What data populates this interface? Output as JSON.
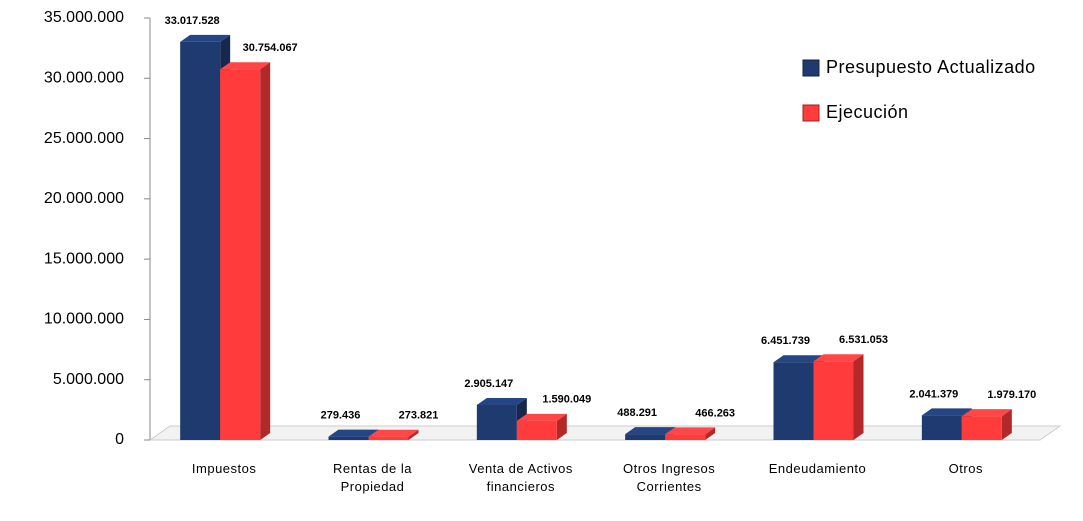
{
  "chart_data": {
    "type": "bar",
    "categories": [
      "Impuestos",
      "Rentas de la Propiedad",
      "Venta de Activos financieros",
      "Otros Ingresos Corrientes",
      "Endeudamiento",
      "Otros"
    ],
    "series": [
      {
        "name": "Presupuesto Actualizado",
        "color": "#1f3a6e",
        "values": [
          33017528,
          279436,
          2905147,
          488291,
          6451739,
          2041379
        ],
        "value_labels": [
          "33.017.528",
          "279.436",
          "2.905.147",
          "488.291",
          "6.451.739",
          "2.041.379"
        ]
      },
      {
        "name": "Ejecución",
        "color": "#ff3b3b",
        "values": [
          30754067,
          273821,
          1590049,
          466263,
          6531053,
          1979170
        ],
        "value_labels": [
          "30.754.067",
          "273.821",
          "1.590.049",
          "466.263",
          "6.531.053",
          "1.979.170"
        ]
      }
    ],
    "ylim": [
      0,
      35000000
    ],
    "yticks": [
      0,
      {
        "value": 5000000,
        "label": "5.000.000"
      },
      {
        "value": 10000000,
        "label": "10.000.000"
      },
      {
        "value": 15000000,
        "label": "15.000.000"
      },
      {
        "value": 20000000,
        "label": "20.000.000"
      },
      {
        "value": 25000000,
        "label": "25.000.000"
      },
      {
        "value": 30000000,
        "label": "30.000.000"
      },
      {
        "value": 35000000,
        "label": "35.000.000"
      }
    ],
    "legend": "top-right"
  }
}
